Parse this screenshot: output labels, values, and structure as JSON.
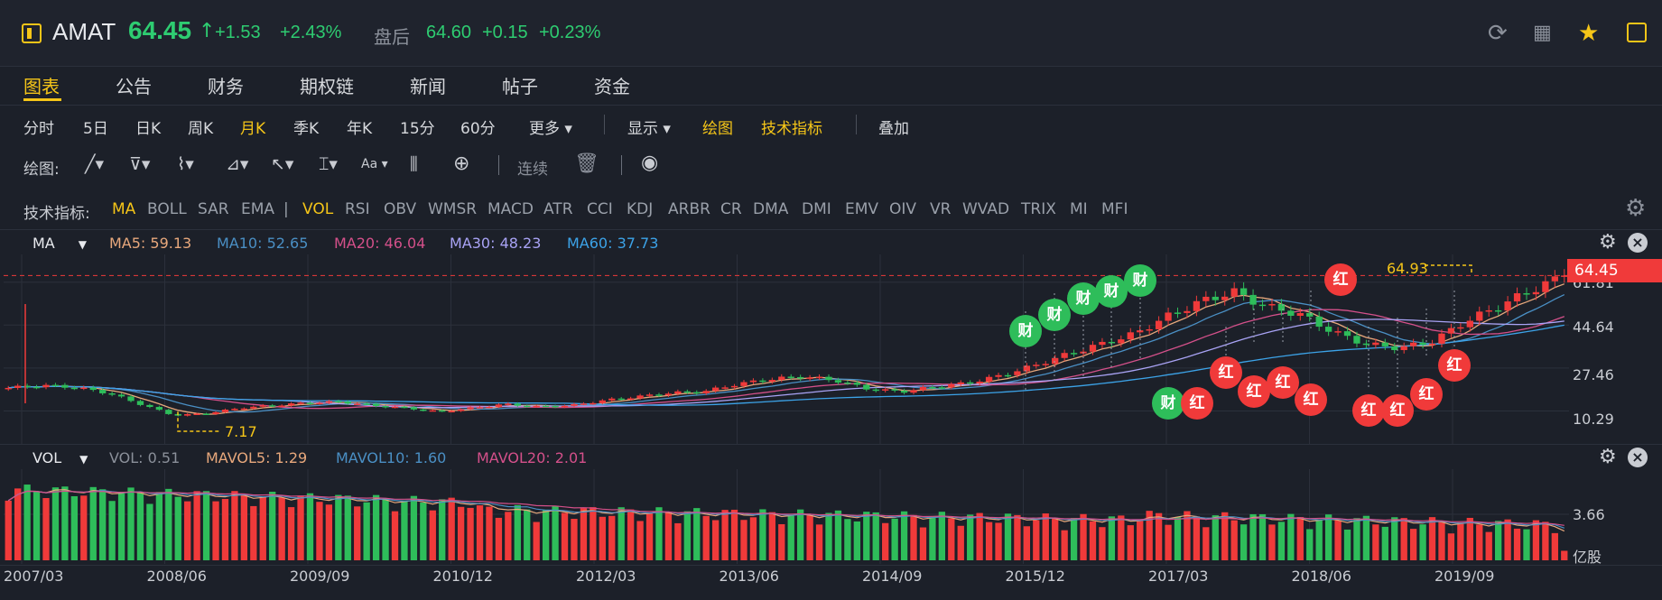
{
  "header": {
    "ticker": "AMAT",
    "price": "64.45",
    "change": "+1.53",
    "change_pct": "+2.43%",
    "after_hours_label": "盘后",
    "ah_price": "64.60",
    "ah_change": "+0.15",
    "ah_change_pct": "+0.23%"
  },
  "tabs": [
    "图表",
    "公告",
    "财务",
    "期权链",
    "新闻",
    "帖子",
    "资金"
  ],
  "periods": {
    "items": [
      "分时",
      "5日",
      "日K",
      "周K",
      "月K",
      "季K",
      "年K",
      "15分",
      "60分"
    ],
    "more": "更多",
    "display": "显示",
    "draw": "绘图",
    "indicators": "技术指标",
    "overlay": "叠加"
  },
  "drawbar": {
    "label": "绘图:",
    "continuous": "连续",
    "aa": "Aa"
  },
  "indicators": {
    "label": "技术指标:",
    "main": [
      "MA",
      "BOLL",
      "SAR",
      "EMA"
    ],
    "sub": [
      "VOL",
      "RSI",
      "OBV",
      "WMSR",
      "MACD",
      "ATR",
      "CCI",
      "KDJ",
      "ARBR",
      "CR",
      "DMA",
      "DMI",
      "EMV",
      "OIV",
      "VR",
      "WVAD",
      "TRIX",
      "MI",
      "MFI"
    ]
  },
  "ma_legend": {
    "name": "MA",
    "ma5": "MA5: 59.13",
    "ma10": "MA10: 52.65",
    "ma20": "MA20: 46.04",
    "ma30": "MA30: 48.23",
    "ma60": "MA60: 37.73"
  },
  "vol_legend": {
    "name": "VOL",
    "vol": "VOL: 0.51",
    "mavol5": "MAVOL5: 1.29",
    "mavol10": "MAVOL10: 1.60",
    "mavol20": "MAVOL20: 2.01"
  },
  "colors": {
    "up": "#f03a3a",
    "down": "#2ebd5a",
    "ma5": "#e8a87c",
    "ma10": "#4a8fc4",
    "ma20": "#d4508a",
    "ma30": "#a9a3f5",
    "ma60": "#3ca3e8"
  },
  "price_axis": [
    "61.81",
    "44.64",
    "27.46",
    "10.29"
  ],
  "current_price_tag": "64.45",
  "high_label": "64.93",
  "low_label": "7.17",
  "vol_axis": [
    "3.66",
    "亿股"
  ],
  "x_axis": [
    "2007/03",
    "2008/06",
    "2009/09",
    "2010/12",
    "2012/03",
    "2013/06",
    "2014/09",
    "2015/12",
    "2017/03",
    "2018/06",
    "2019/09"
  ],
  "events": {
    "cai": "财",
    "hong": "红"
  },
  "chart_data": {
    "type": "candlestick",
    "title": "",
    "period": "monthly",
    "ylim": [
      0,
      70
    ],
    "y_ticks": [
      10.29,
      27.46,
      44.64,
      61.81
    ],
    "x_ticks": [
      "2007/03",
      "2008/06",
      "2009/09",
      "2010/12",
      "2012/03",
      "2013/06",
      "2014/09",
      "2015/12",
      "2017/03",
      "2018/06",
      "2019/09"
    ],
    "close_series": [
      19.5,
      20.5,
      19.8,
      17.5,
      13.0,
      8.5,
      9.3,
      11.5,
      12.5,
      13.5,
      14.0,
      12.5,
      11.5,
      10.0,
      11.5,
      13.0,
      12.0,
      12.5,
      14.5,
      16.0,
      17.5,
      18.0,
      21.0,
      23.0,
      24.0,
      22.5,
      19.0,
      18.0,
      20.0,
      21.5,
      24.5,
      28.5,
      33.0,
      37.0,
      41.0,
      48.0,
      54.0,
      58.0,
      52.0,
      49.0,
      42.0,
      37.0,
      35.5,
      38.0,
      46.0,
      52.0,
      58.5,
      64.45
    ],
    "ma_current": {
      "MA5": 59.13,
      "MA10": 52.65,
      "MA20": 46.04,
      "MA30": 48.23,
      "MA60": 37.73
    },
    "volume": {
      "VOL": 0.51,
      "MAVOL5": 1.29,
      "MAVOL10": 1.6,
      "MAVOL20": 2.01,
      "unit": "亿股",
      "axis_tick": 3.66
    }
  }
}
